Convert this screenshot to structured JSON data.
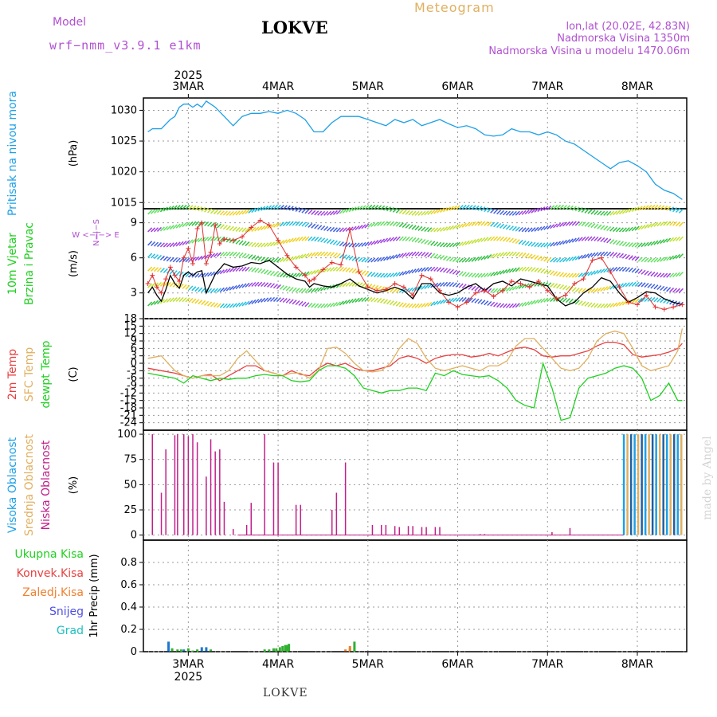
{
  "header": {
    "model_label": "Model",
    "model_name": "wrf−nmm_v3.9.1  e1km",
    "station": "LOKVE",
    "title": "Meteogram",
    "coords": "lon,lat (20.02E, 42.83N)",
    "elevation": "Nadmorska Visina 1350m",
    "model_elevation": "Nadmorska Visina u modelu 1470.06m",
    "credit": "made by Angel",
    "bottom_station": "LOKVE"
  },
  "chart_data": [
    {
      "type": "line",
      "panel": "pressure",
      "title_lines": [
        "Pritisak na nivou mora"
      ],
      "ylabel": "(hPa)",
      "ylim": [
        1014,
        1032
      ],
      "yticks": [
        1015,
        1020,
        1025,
        1030
      ],
      "x_unit": "day of March 2025 (decimal)",
      "series": [
        {
          "color": "#1ea0e6",
          "x": [
            2.55,
            2.6,
            2.7,
            2.8,
            2.85,
            2.9,
            2.95,
            3.0,
            3.05,
            3.1,
            3.15,
            3.2,
            3.25,
            3.3,
            3.4,
            3.5,
            3.6,
            3.7,
            3.8,
            3.9,
            4.0,
            4.1,
            4.2,
            4.3,
            4.4,
            4.5,
            4.6,
            4.7,
            4.8,
            4.9,
            5.0,
            5.1,
            5.2,
            5.3,
            5.4,
            5.5,
            5.6,
            5.7,
            5.8,
            5.9,
            6.0,
            6.1,
            6.2,
            6.3,
            6.4,
            6.5,
            6.6,
            6.7,
            6.8,
            6.9,
            7.0,
            7.1,
            7.2,
            7.3,
            7.4,
            7.5,
            7.6,
            7.7,
            7.8,
            7.9,
            8.0,
            8.1,
            8.2,
            8.3,
            8.4,
            8.5
          ],
          "y": [
            1026.5,
            1027,
            1027,
            1028.5,
            1029,
            1030.5,
            1031,
            1031,
            1030.5,
            1031,
            1030.5,
            1031.5,
            1031,
            1030.5,
            1029,
            1027.5,
            1029,
            1029.5,
            1029.5,
            1029.8,
            1029.5,
            1030,
            1029.5,
            1028.5,
            1026.5,
            1026.5,
            1028,
            1029,
            1029,
            1029,
            1028.5,
            1028,
            1027.5,
            1028.5,
            1028,
            1028.5,
            1027.5,
            1028,
            1028.5,
            1027.8,
            1027.2,
            1027.5,
            1027,
            1026,
            1025.8,
            1026,
            1027,
            1026.5,
            1026.5,
            1026,
            1026.5,
            1026,
            1025,
            1024.5,
            1023.5,
            1022.5,
            1021.5,
            1020.5,
            1021.5,
            1021.8,
            1021,
            1020,
            1018,
            1017,
            1016.5,
            1015.5
          ]
        }
      ]
    },
    {
      "type": "line",
      "panel": "wind",
      "title_lines": [
        "10m Vjetar",
        "Brzina i Pravac"
      ],
      "ylabel": "(m/s)",
      "direction_legend": "W <−|−> E",
      "direction_legend_vertical": "N−|−S",
      "ylim": [
        0.8,
        10.2
      ],
      "yticks": [
        3,
        6,
        9
      ],
      "series": [
        {
          "name_hidden": "speed",
          "color": "#000000",
          "x": [
            2.55,
            2.6,
            2.65,
            2.7,
            2.75,
            2.8,
            2.85,
            2.9,
            2.95,
            3.0,
            3.05,
            3.1,
            3.15,
            3.2,
            3.25,
            3.3,
            3.4,
            3.5,
            3.6,
            3.7,
            3.8,
            3.9,
            4.0,
            4.1,
            4.2,
            4.3,
            4.35,
            4.4,
            4.5,
            4.6,
            4.7,
            4.8,
            4.9,
            5.0,
            5.1,
            5.2,
            5.3,
            5.4,
            5.5,
            5.6,
            5.7,
            5.8,
            5.9,
            6.0,
            6.1,
            6.2,
            6.3,
            6.4,
            6.5,
            6.6,
            6.7,
            6.8,
            6.9,
            7.0,
            7.1,
            7.2,
            7.3,
            7.4,
            7.5,
            7.6,
            7.7,
            7.8,
            7.9,
            8.0,
            8.1,
            8.2,
            8.3,
            8.4,
            8.5
          ],
          "y": [
            3.0,
            3.5,
            2.8,
            2.3,
            3.3,
            4.5,
            3.8,
            3.4,
            4.5,
            4.8,
            4.5,
            4.8,
            4.9,
            3.0,
            3.8,
            4.6,
            5.5,
            5.2,
            5.3,
            5.6,
            5.5,
            5.8,
            5.2,
            4.6,
            4.2,
            4.0,
            3.5,
            3.8,
            3.6,
            3.5,
            3.8,
            4.2,
            3.6,
            3.3,
            3.0,
            3.2,
            3.5,
            3.2,
            2.5,
            3.8,
            3.8,
            3.0,
            2.8,
            3.0,
            3.5,
            3.8,
            3.2,
            3.8,
            4.0,
            3.6,
            4.2,
            4.0,
            3.8,
            3.6,
            2.5,
            1.9,
            2.2,
            3.0,
            3.5,
            4.3,
            4.0,
            3.0,
            2.2,
            2.6,
            3.1,
            3.0,
            2.5,
            2.2,
            2.0
          ]
        },
        {
          "name_hidden": "gust",
          "color": "#e03030",
          "x": [
            2.55,
            2.6,
            2.65,
            2.7,
            2.75,
            2.8,
            2.85,
            2.9,
            2.95,
            3.0,
            3.05,
            3.1,
            3.15,
            3.2,
            3.25,
            3.3,
            3.35,
            3.4,
            3.5,
            3.6,
            3.7,
            3.8,
            3.9,
            4.0,
            4.1,
            4.2,
            4.3,
            4.35,
            4.4,
            4.5,
            4.6,
            4.7,
            4.8,
            4.9,
            5.0,
            5.1,
            5.2,
            5.3,
            5.4,
            5.5,
            5.6,
            5.7,
            5.8,
            5.9,
            6.0,
            6.1,
            6.2,
            6.3,
            6.4,
            6.5,
            6.6,
            6.7,
            6.8,
            6.9,
            7.0,
            7.1,
            7.2,
            7.3,
            7.4,
            7.5,
            7.6,
            7.7,
            7.8,
            7.9,
            8.0,
            8.1,
            8.2,
            8.3,
            8.4,
            8.5
          ],
          "y": [
            3.8,
            4.5,
            3.5,
            3.0,
            4.2,
            5.2,
            4.5,
            4.0,
            6.0,
            6.8,
            5.5,
            8.5,
            9.0,
            5.5,
            6.5,
            8.8,
            7.2,
            7.6,
            7.5,
            7.8,
            8.6,
            9.2,
            8.8,
            7.5,
            6.2,
            5.2,
            4.5,
            4.0,
            4.2,
            5.0,
            5.6,
            5.4,
            8.4,
            4.8,
            3.5,
            3.2,
            3.3,
            3.8,
            3.5,
            2.8,
            4.5,
            4.2,
            3.2,
            2.2,
            1.8,
            2.2,
            3.0,
            3.2,
            2.7,
            3.2,
            4.0,
            3.8,
            3.5,
            4.0,
            3.2,
            2.5,
            2.8,
            3.8,
            4.2,
            5.8,
            6.0,
            4.8,
            3.5,
            2.2,
            2.0,
            2.8,
            1.8,
            1.6,
            1.8,
            2.0
          ]
        }
      ],
      "barb_rows": [
        2,
        3.3,
        4.6,
        5.9,
        7.2,
        8.5,
        9.9
      ]
    },
    {
      "type": "line",
      "panel": "temperature",
      "title_lines": [
        "2m Temp",
        "SFC Temp",
        "dewpt Temp"
      ],
      "title_colors": [
        "#e84040",
        "#e0b060",
        "#20d020"
      ],
      "ylabel": "(C)",
      "ylim": [
        -27,
        18
      ],
      "yticks": [
        18,
        15,
        12,
        9,
        6,
        3,
        0,
        -3,
        -6,
        -9,
        -12,
        -15,
        -18,
        -21,
        -24
      ],
      "series": [
        {
          "name_hidden": "2m",
          "color": "#e84040",
          "x": [
            2.55,
            2.7,
            2.85,
            2.95,
            3.05,
            3.15,
            3.25,
            3.35,
            3.45,
            3.55,
            3.65,
            3.75,
            3.85,
            3.95,
            4.05,
            4.15,
            4.25,
            4.35,
            4.45,
            4.55,
            4.65,
            4.75,
            4.85,
            4.95,
            5.05,
            5.15,
            5.25,
            5.35,
            5.45,
            5.55,
            5.65,
            5.75,
            5.85,
            5.95,
            6.05,
            6.15,
            6.25,
            6.35,
            6.45,
            6.55,
            6.65,
            6.75,
            6.85,
            6.95,
            7.05,
            7.15,
            7.25,
            7.35,
            7.45,
            7.55,
            7.65,
            7.75,
            7.85,
            7.95,
            8.05,
            8.15,
            8.25,
            8.35,
            8.45,
            8.5
          ],
          "y": [
            -2,
            -3,
            -4,
            -5,
            -6,
            -5,
            -4.5,
            -7,
            -5,
            -3,
            -1,
            -1,
            -3,
            -4,
            -5,
            -3,
            -4.5,
            -5,
            -2,
            0,
            -1,
            0,
            -2,
            -3,
            -3,
            -2,
            -1,
            2,
            3,
            2,
            0,
            2,
            3,
            3.5,
            3.5,
            2.5,
            3,
            4,
            3,
            4.5,
            6,
            6.5,
            5.5,
            3,
            2.5,
            3,
            3,
            4,
            5,
            7,
            8.5,
            8.5,
            7.5,
            3.5,
            2.5,
            3,
            3.5,
            4.5,
            6,
            8
          ]
        },
        {
          "name_hidden": "sfc",
          "color": "#e0b060",
          "x": [
            2.55,
            2.7,
            2.85,
            2.95,
            3.05,
            3.15,
            3.25,
            3.35,
            3.45,
            3.55,
            3.65,
            3.75,
            3.85,
            3.95,
            4.05,
            4.15,
            4.25,
            4.35,
            4.45,
            4.55,
            4.65,
            4.75,
            4.85,
            4.95,
            5.05,
            5.15,
            5.25,
            5.35,
            5.45,
            5.55,
            5.65,
            5.75,
            5.85,
            5.95,
            6.05,
            6.15,
            6.25,
            6.35,
            6.45,
            6.55,
            6.65,
            6.75,
            6.85,
            6.95,
            7.05,
            7.15,
            7.25,
            7.35,
            7.45,
            7.55,
            7.65,
            7.75,
            7.85,
            7.95,
            8.05,
            8.15,
            8.25,
            8.35,
            8.45,
            8.5
          ],
          "y": [
            2,
            3,
            -3,
            -5,
            -6,
            -5,
            -5,
            -5,
            -3,
            2,
            5,
            1,
            -3,
            -4,
            -5,
            -4,
            -4,
            -6,
            -3,
            6,
            6.5,
            4,
            0,
            -3,
            -3.5,
            -3,
            0,
            6,
            10,
            8,
            2,
            -2,
            -3,
            -2,
            -1,
            -2,
            -3,
            -1,
            -1,
            1,
            7,
            10,
            10,
            6,
            2,
            -2,
            -3,
            -2,
            2,
            9,
            12,
            13,
            12,
            6,
            -1,
            -3,
            -2,
            -1,
            5,
            14
          ]
        },
        {
          "name_hidden": "dewpt",
          "color": "#20d020",
          "x": [
            2.55,
            2.7,
            2.85,
            2.95,
            3.05,
            3.15,
            3.25,
            3.35,
            3.45,
            3.55,
            3.65,
            3.75,
            3.85,
            3.95,
            4.05,
            4.15,
            4.25,
            4.35,
            4.45,
            4.55,
            4.65,
            4.75,
            4.85,
            4.95,
            5.05,
            5.15,
            5.25,
            5.35,
            5.45,
            5.55,
            5.65,
            5.75,
            5.85,
            5.95,
            6.05,
            6.15,
            6.25,
            6.35,
            6.45,
            6.55,
            6.65,
            6.75,
            6.85,
            6.95,
            7.05,
            7.15,
            7.25,
            7.35,
            7.45,
            7.55,
            7.65,
            7.75,
            7.85,
            7.95,
            8.05,
            8.15,
            8.25,
            8.35,
            8.45,
            8.5
          ],
          "y": [
            -4,
            -5,
            -6,
            -8,
            -5,
            -6,
            -7,
            -6,
            -6.5,
            -6,
            -6,
            -5,
            -4.5,
            -5,
            -5,
            -7,
            -7.5,
            -7,
            -3,
            -1,
            -1,
            -2,
            -5,
            -10,
            -11,
            -12,
            -11,
            -11,
            -10,
            -10,
            -11,
            -4,
            -5,
            -3,
            -4.5,
            -5,
            -5.5,
            -5,
            -7,
            -10,
            -15,
            -17,
            -18,
            0,
            -10,
            -23,
            -22,
            -10,
            -6,
            -5,
            -4,
            -2,
            -1,
            -2,
            -6,
            -15,
            -13,
            -8,
            -15,
            -15
          ]
        }
      ]
    },
    {
      "type": "bar",
      "panel": "cloud",
      "title_lines": [
        "Visoka Oblacnost",
        "Srednja Oblacnost",
        "Niska Oblacnost"
      ],
      "title_colors": [
        "#1ea0e6",
        "#e0b060",
        "#c0208a"
      ],
      "ylabel": "(%)",
      "ylim": [
        -5,
        104
      ],
      "yticks": [
        0,
        25,
        50,
        75,
        100
      ],
      "low_cloud": {
        "color": "#c0208a",
        "x": [
          2.6,
          2.7,
          2.75,
          2.85,
          2.88,
          2.95,
          3.0,
          3.05,
          3.1,
          3.2,
          3.25,
          3.3,
          3.35,
          3.4,
          3.5,
          3.55,
          3.65,
          3.7,
          3.85,
          3.95,
          4.0,
          4.05,
          4.2,
          4.25,
          4.6,
          4.65,
          4.75,
          4.85,
          5.05,
          5.15,
          5.2,
          5.3,
          5.35,
          5.45,
          5.5,
          5.6,
          5.65,
          5.75,
          5.8,
          6.25,
          6.3,
          7.05,
          7.25
        ],
        "y": [
          100,
          42,
          85,
          99,
          100,
          100,
          98,
          100,
          92,
          58,
          95,
          83,
          85,
          33,
          6,
          0,
          10,
          32,
          100,
          72,
          72,
          0,
          30,
          30,
          25,
          42,
          72,
          0,
          10,
          10,
          10,
          9,
          8,
          9,
          9,
          8,
          8,
          8,
          8,
          1,
          1,
          3,
          7
        ]
      },
      "high_cloud_bars": {
        "colors": [
          "#1ea0e6",
          "#e0b060",
          "#2060a0"
        ],
        "x_start": 7.85,
        "x_end": 8.5,
        "value": 100
      }
    },
    {
      "type": "bar",
      "panel": "precip",
      "title_lines": [
        "Ukupna Kisa",
        "Konvek.Kisa",
        "Zaledj.Kisa",
        "Snijeg",
        "Grad"
      ],
      "title_colors": [
        "#20d020",
        "#e84040",
        "#f08030",
        "#5050e0",
        "#20c0c0"
      ],
      "ylabel": "1hr Precip (mm)",
      "ylim": [
        0,
        1.0
      ],
      "yticks": [
        0,
        0.2,
        0.4,
        0.6,
        0.8
      ],
      "snow": {
        "color": "#1e78d0",
        "x": [
          2.78,
          2.95,
          3.15,
          3.2
        ],
        "y": [
          0.09,
          0.02,
          0.04,
          0.04
        ]
      },
      "rain": {
        "color": "#30b030",
        "x": [
          2.82,
          2.88,
          2.92,
          3.0,
          3.05,
          3.1,
          3.25,
          3.85,
          3.9,
          3.95,
          3.98,
          4.02,
          4.05,
          4.08,
          4.1,
          4.12,
          4.8,
          4.85
        ],
        "y": [
          0.03,
          0.02,
          0.02,
          0.03,
          0.01,
          0.02,
          0.02,
          0.02,
          0.02,
          0.03,
          0.03,
          0.04,
          0.05,
          0.06,
          0.06,
          0.07,
          0.03,
          0.09
        ]
      },
      "frozen": {
        "color": "#f08030",
        "x": [
          4.75,
          4.8
        ],
        "y": [
          0.02,
          0.05
        ]
      }
    }
  ],
  "x_axis": {
    "year": "2025",
    "ticks": [
      {
        "x": 3,
        "label": "3MAR"
      },
      {
        "x": 4,
        "label": "4MAR"
      },
      {
        "x": 5,
        "label": "5MAR"
      },
      {
        "x": 6,
        "label": "6MAR"
      },
      {
        "x": 7,
        "label": "7MAR"
      },
      {
        "x": 8,
        "label": "8MAR"
      }
    ],
    "xlim": [
      2.5,
      8.55
    ]
  },
  "colors": {
    "pressure": "#1ea0e6",
    "frame": "#000000",
    "grid": "#999999",
    "title_purple": "#b050d0"
  }
}
